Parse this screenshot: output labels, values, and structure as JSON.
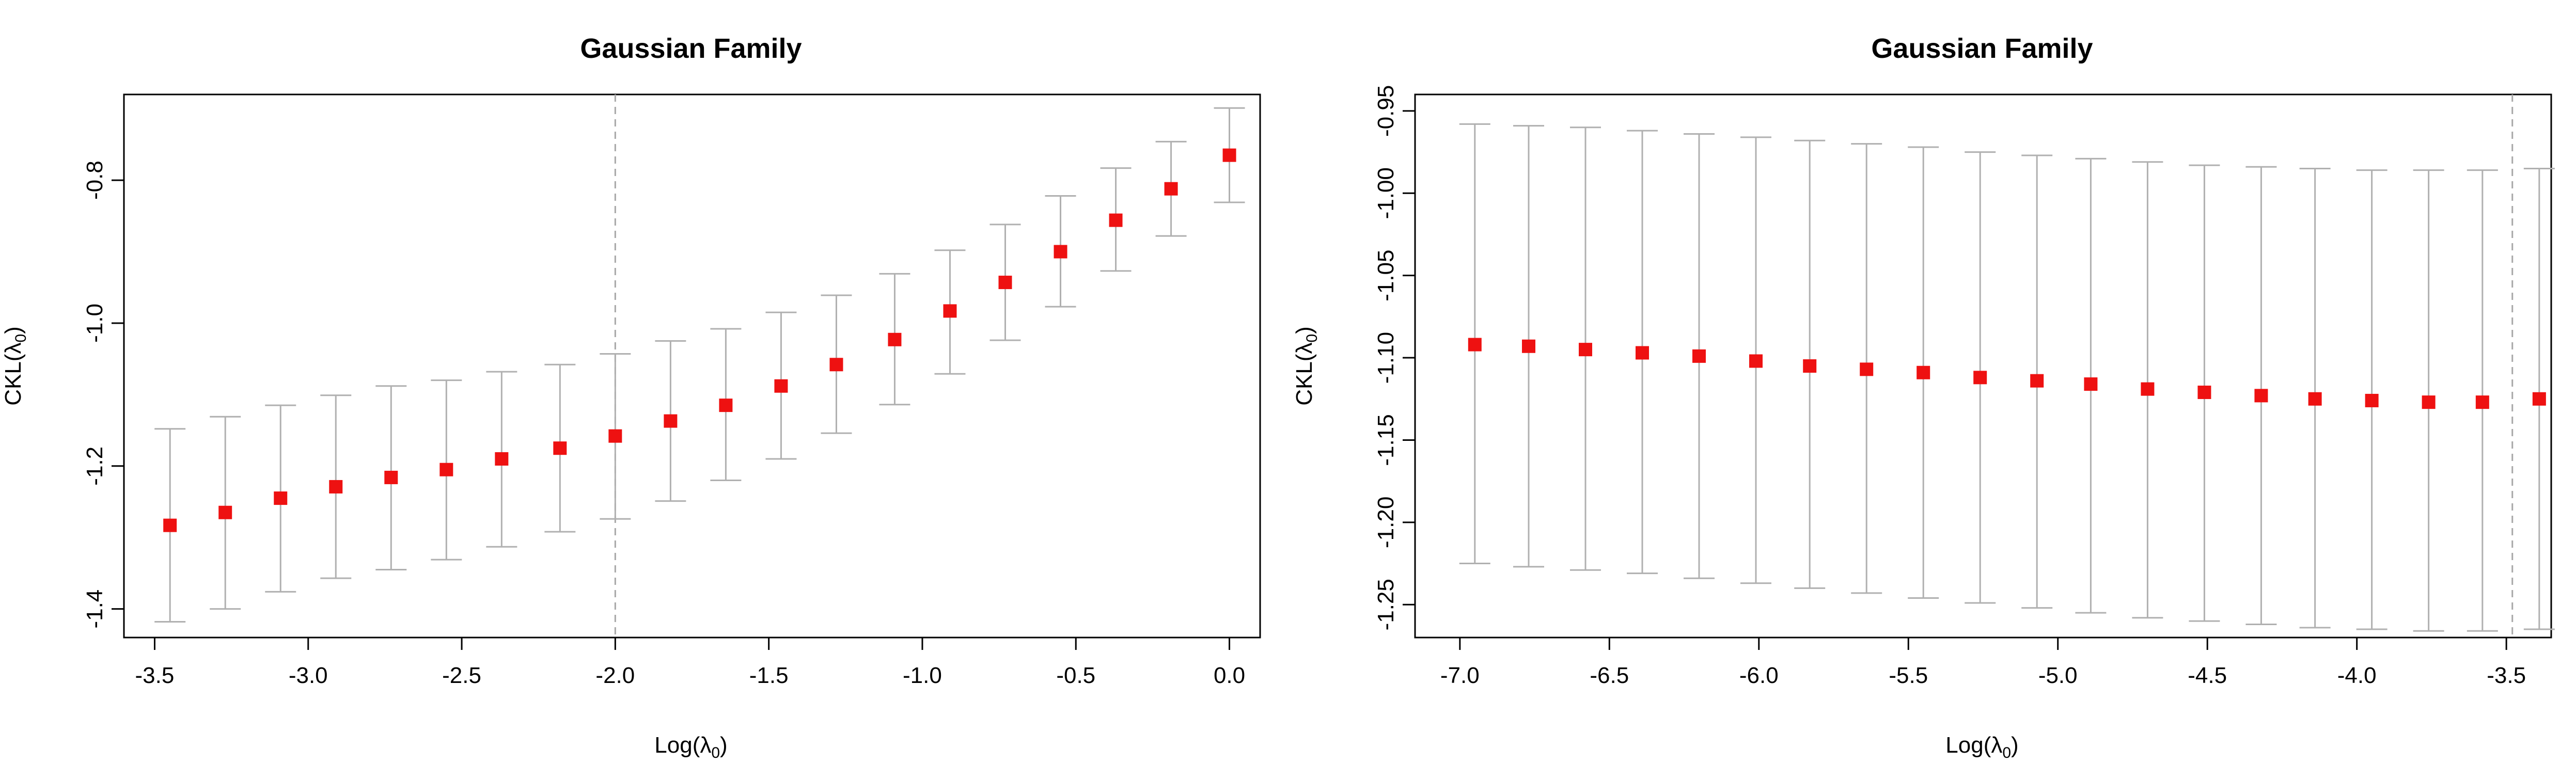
{
  "chart_data": [
    {
      "type": "errorbar",
      "title": "Gaussian Family",
      "xlabel": "Log(λ₀)",
      "xlabel_main": "Log(λ",
      "xlabel_sub": "0",
      "xlabel_close": ")",
      "ylabel": "CKL(λ₀)",
      "ylabel_main": "CKL(λ",
      "ylabel_sub": "0",
      "ylabel_close": ")",
      "xlim": [
        -3.6,
        0.1
      ],
      "ylim": [
        -1.44,
        -0.68
      ],
      "xticks": [
        -3.5,
        -3.0,
        -2.5,
        -2.0,
        -1.5,
        -1.0,
        -0.5,
        0.0
      ],
      "xtick_labels": [
        "-3.5",
        "-3.0",
        "-2.5",
        "-2.0",
        "-1.5",
        "-1.0",
        "-0.5",
        "0.0"
      ],
      "yticks": [
        -1.4,
        -1.2,
        -1.0,
        -0.8
      ],
      "ytick_labels": [
        "-1.4",
        "-1.2",
        "-1.0",
        "-0.8"
      ],
      "vline_x": -2.0,
      "x": [
        -3.45,
        -3.27,
        -3.09,
        -2.91,
        -2.73,
        -2.55,
        -2.37,
        -2.18,
        -2.0,
        -1.82,
        -1.64,
        -1.46,
        -1.28,
        -1.09,
        -0.91,
        -0.73,
        -0.55,
        -0.37,
        -0.19,
        0.0
      ],
      "y": [
        -1.283,
        -1.265,
        -1.245,
        -1.229,
        -1.216,
        -1.205,
        -1.19,
        -1.175,
        -1.158,
        -1.137,
        -1.115,
        -1.088,
        -1.058,
        -1.023,
        -0.983,
        -0.943,
        -0.9,
        -0.856,
        -0.812,
        -0.765
      ],
      "lower": [
        -1.418,
        -1.4,
        -1.376,
        -1.357,
        -1.345,
        -1.331,
        -1.313,
        -1.292,
        -1.274,
        -1.249,
        -1.22,
        -1.19,
        -1.154,
        -1.114,
        -1.071,
        -1.024,
        -0.977,
        -0.927,
        -0.878,
        -0.831
      ],
      "upper": [
        -1.148,
        -1.131,
        -1.115,
        -1.101,
        -1.088,
        -1.08,
        -1.068,
        -1.058,
        -1.043,
        -1.025,
        -1.008,
        -0.985,
        -0.961,
        -0.931,
        -0.898,
        -0.862,
        -0.822,
        -0.783,
        -0.746,
        -0.699
      ]
    },
    {
      "type": "errorbar",
      "title": "Gaussian Family",
      "xlabel": "Log(λ₀)",
      "xlabel_main": "Log(λ",
      "xlabel_sub": "0",
      "xlabel_close": ")",
      "ylabel": "CKL(λ₀)",
      "ylabel_main": "CKL(λ",
      "ylabel_sub": "0",
      "ylabel_close": ")",
      "xlim": [
        -7.15,
        -3.35
      ],
      "ylim": [
        -1.27,
        -0.94
      ],
      "xticks": [
        -7.0,
        -6.5,
        -6.0,
        -5.5,
        -5.0,
        -4.5,
        -4.0,
        -3.5
      ],
      "xtick_labels": [
        "-7.0",
        "-6.5",
        "-6.0",
        "-5.5",
        "-5.0",
        "-4.5",
        "-4.0",
        "-3.5"
      ],
      "yticks": [
        -1.25,
        -1.2,
        -1.15,
        -1.1,
        -1.05,
        -1.0,
        -0.95
      ],
      "ytick_labels": [
        "-1.25",
        "-1.20",
        "-1.15",
        "-1.10",
        "-1.05",
        "-1.00",
        "-0.95"
      ],
      "vline_x": -3.48,
      "x": [
        -6.95,
        -6.77,
        -6.58,
        -6.39,
        -6.2,
        -6.01,
        -5.83,
        -5.64,
        -5.45,
        -5.26,
        -5.07,
        -4.89,
        -4.7,
        -4.51,
        -4.32,
        -4.14,
        -3.95,
        -3.76,
        -3.58,
        -3.39
      ],
      "y": [
        -1.092,
        -1.093,
        -1.095,
        -1.097,
        -1.099,
        -1.102,
        -1.105,
        -1.107,
        -1.109,
        -1.112,
        -1.114,
        -1.116,
        -1.119,
        -1.121,
        -1.123,
        -1.125,
        -1.126,
        -1.127,
        -1.127,
        -1.125
      ],
      "lower": [
        -1.225,
        -1.227,
        -1.229,
        -1.231,
        -1.234,
        -1.237,
        -1.24,
        -1.243,
        -1.246,
        -1.249,
        -1.252,
        -1.255,
        -1.258,
        -1.26,
        -1.262,
        -1.264,
        -1.265,
        -1.266,
        -1.266,
        -1.265
      ],
      "upper": [
        -0.958,
        -0.959,
        -0.96,
        -0.962,
        -0.964,
        -0.966,
        -0.968,
        -0.97,
        -0.972,
        -0.975,
        -0.977,
        -0.979,
        -0.981,
        -0.983,
        -0.984,
        -0.985,
        -0.986,
        -0.986,
        -0.986,
        -0.985
      ]
    }
  ]
}
